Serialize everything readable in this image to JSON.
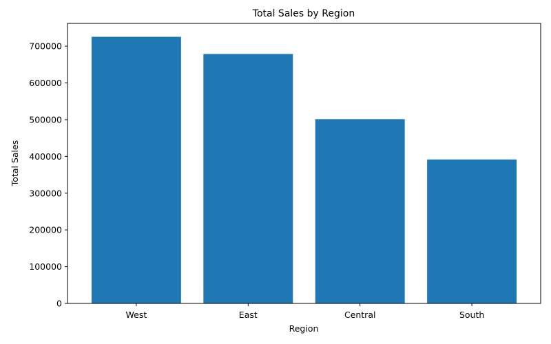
{
  "chart_data": {
    "type": "bar",
    "title": "Total Sales by Region",
    "xlabel": "Region",
    "ylabel": "Total Sales",
    "categories": [
      "West",
      "East",
      "Central",
      "South"
    ],
    "values": [
      725458,
      678781,
      501240,
      391722
    ],
    "ylim": [
      0,
      762000
    ],
    "yticks": [
      0,
      100000,
      200000,
      300000,
      400000,
      500000,
      600000,
      700000
    ],
    "bar_color": "#1f77b4",
    "grid": false
  }
}
